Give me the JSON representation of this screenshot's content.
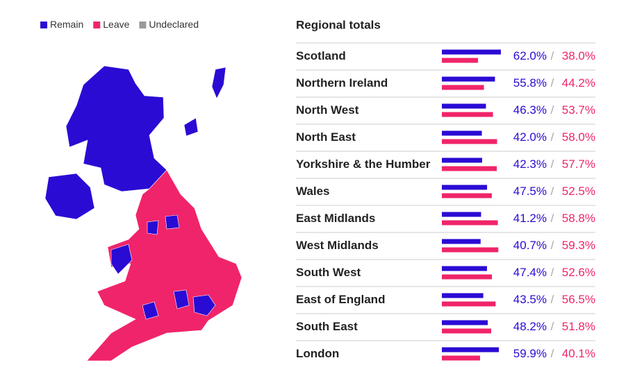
{
  "chart_data": {
    "type": "hbar",
    "title": "Regional totals",
    "categories": [
      "Scotland",
      "Northern Ireland",
      "North West",
      "North East",
      "Yorkshire & the Humber",
      "Wales",
      "East Midlands",
      "West Midlands",
      "South West",
      "East of England",
      "South East",
      "London"
    ],
    "series": [
      {
        "name": "Remain",
        "color": "#2a0bd4",
        "values": [
          62.0,
          55.8,
          46.3,
          42.0,
          42.3,
          47.5,
          41.2,
          40.7,
          47.4,
          43.5,
          48.2,
          59.9
        ],
        "value_labels": [
          "62.0%",
          "55.8%",
          "46.3%",
          "42.0%",
          "42.3%",
          "47.5%",
          "41.2%",
          "40.7%",
          "47.4%",
          "43.5%",
          "48.2%",
          "59.9%"
        ]
      },
      {
        "name": "Leave",
        "color": "#f0246a",
        "values": [
          38.0,
          44.2,
          53.7,
          58.0,
          57.7,
          52.5,
          58.8,
          59.3,
          52.6,
          56.5,
          51.8,
          40.1
        ],
        "value_labels": [
          "38.0%",
          "44.2%",
          "53.7%",
          "58.0%",
          "57.7%",
          "52.5%",
          "58.8%",
          "59.3%",
          "52.6%",
          "56.5%",
          "51.8%",
          "40.1%"
        ]
      }
    ],
    "value_separator": "/"
  },
  "map": {
    "undeclared": {
      "name": "Undeclared",
      "color": "#999999"
    }
  }
}
